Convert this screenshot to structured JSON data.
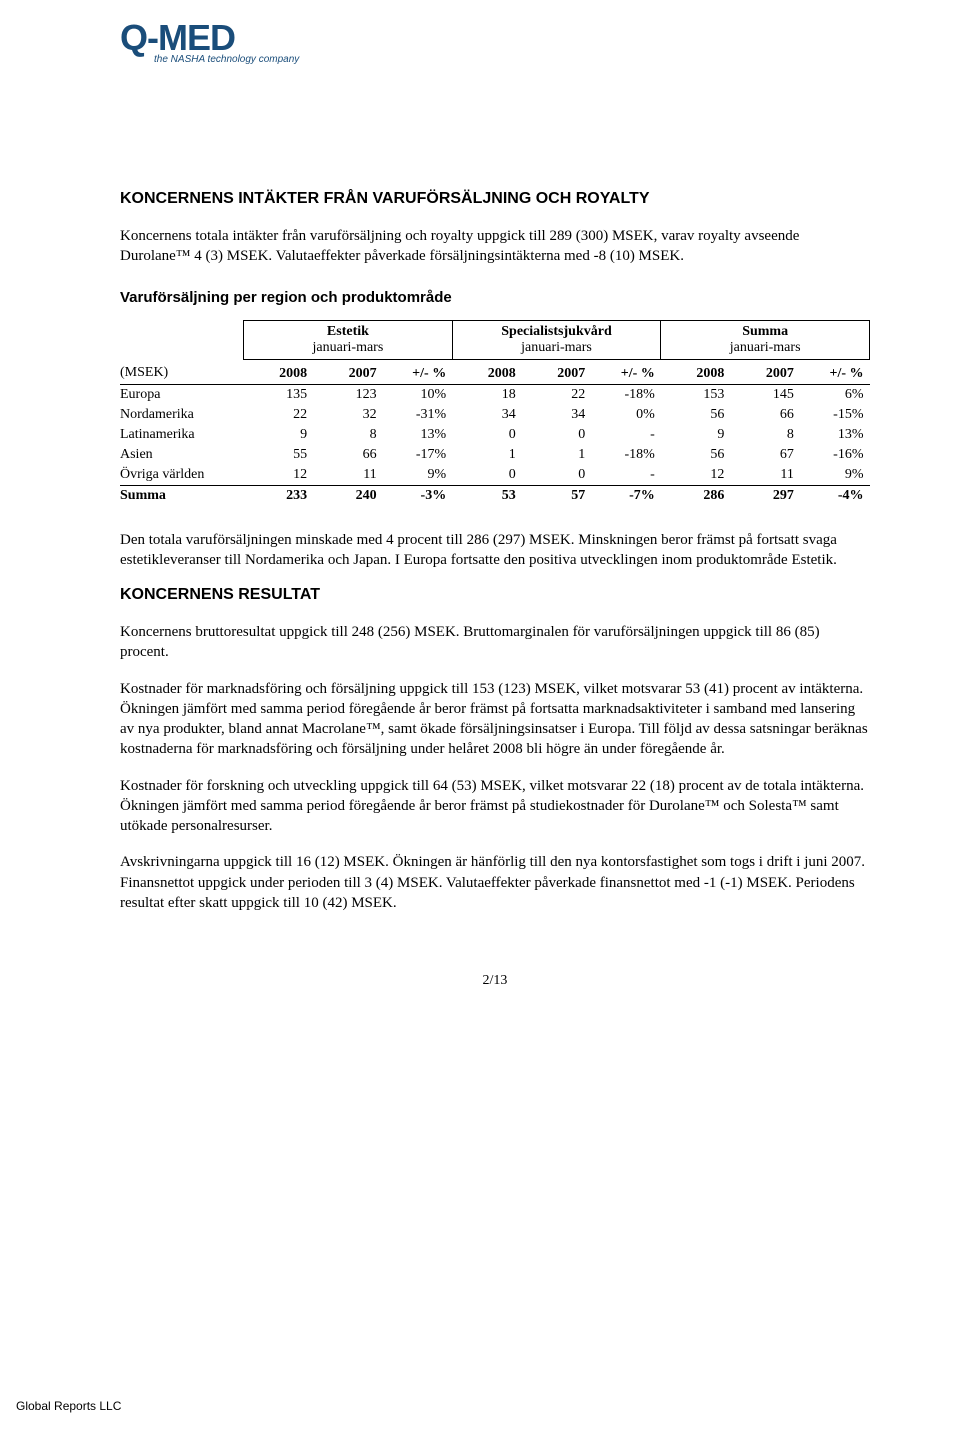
{
  "logo": {
    "main": "Q-MED",
    "sub": "the NASHA technology company"
  },
  "heading1": "KONCERNENS INTÄKTER FRÅN VARUFÖRSÄLJNING OCH ROYALTY",
  "p1": "Koncernens totala intäkter från varuförsäljning och royalty uppgick till 289 (300) MSEK, varav royalty avseende Durolane™ 4 (3) MSEK. Valutaeffekter påverkade försäljningsintäkterna med -8 (10) MSEK.",
  "heading2": "Varuförsäljning per region och produktområde",
  "table": {
    "groups": [
      {
        "title": "Estetik",
        "sub": "januari-mars"
      },
      {
        "title": "Specialistsjukvård",
        "sub": "januari-mars"
      },
      {
        "title": "Summa",
        "sub": "januari-mars"
      }
    ],
    "colhead_label": "(MSEK)",
    "cols": [
      "2008",
      "2007",
      "+/- %",
      "2008",
      "2007",
      "+/- %",
      "2008",
      "2007",
      "+/- %"
    ],
    "rows": [
      {
        "label": "Europa",
        "cells": [
          "135",
          "123",
          "10%",
          "18",
          "22",
          "-18%",
          "153",
          "145",
          "6%"
        ]
      },
      {
        "label": "Nordamerika",
        "cells": [
          "22",
          "32",
          "-31%",
          "34",
          "34",
          "0%",
          "56",
          "66",
          "-15%"
        ]
      },
      {
        "label": "Latinamerika",
        "cells": [
          "9",
          "8",
          "13%",
          "0",
          "0",
          "-",
          "9",
          "8",
          "13%"
        ]
      },
      {
        "label": "Asien",
        "cells": [
          "55",
          "66",
          "-17%",
          "1",
          "1",
          "-18%",
          "56",
          "67",
          "-16%"
        ]
      },
      {
        "label": "Övriga världen",
        "cells": [
          "12",
          "11",
          "9%",
          "0",
          "0",
          "-",
          "12",
          "11",
          "9%"
        ]
      }
    ],
    "sumrow": {
      "label": "Summa",
      "cells": [
        "233",
        "240",
        "-3%",
        "53",
        "57",
        "-7%",
        "286",
        "297",
        "-4%"
      ]
    }
  },
  "p2": "Den totala varuförsäljningen minskade med 4 procent till 286 (297) MSEK. Minskningen beror främst på fortsatt svaga estetikleveranser till Nordamerika och Japan. I Europa fortsatte den positiva utvecklingen inom produktområde Estetik.",
  "heading3": "KONCERNENS RESULTAT",
  "p3": "Koncernens bruttoresultat uppgick till 248 (256) MSEK. Bruttomarginalen för varuförsäljningen uppgick till 86 (85) procent.",
  "p4": "Kostnader för marknadsföring och försäljning uppgick till 153 (123) MSEK, vilket motsvarar 53 (41) procent av intäkterna. Ökningen jämfört med samma period föregående år beror främst på fortsatta marknadsaktiviteter i samband med lansering av nya produkter, bland annat Macrolane™, samt ökade försäljningsinsatser i Europa. Till följd av dessa satsningar beräknas kostnaderna för marknadsföring och försäljning under helåret 2008 bli högre än under föregående år.",
  "p5": "Kostnader för forskning och utveckling uppgick till 64 (53) MSEK, vilket motsvarar 22 (18) procent av de totala intäkterna. Ökningen jämfört med samma period föregående år beror främst på studiekostnader för Durolane™ och Solesta™ samt utökade personalresurser.",
  "p6": "Avskrivningarna uppgick till 16 (12) MSEK. Ökningen är hänförlig till den nya kontorsfastighet som togs i drift i juni 2007. Finansnettot uppgick under perioden till 3 (4) MSEK. Valutaeffekter påverkade finansnettot med -1 (-1) MSEK. Periodens resultat efter skatt uppgick till 10 (42) MSEK.",
  "pagenum": "2/13",
  "footer": "Global Reports LLC"
}
